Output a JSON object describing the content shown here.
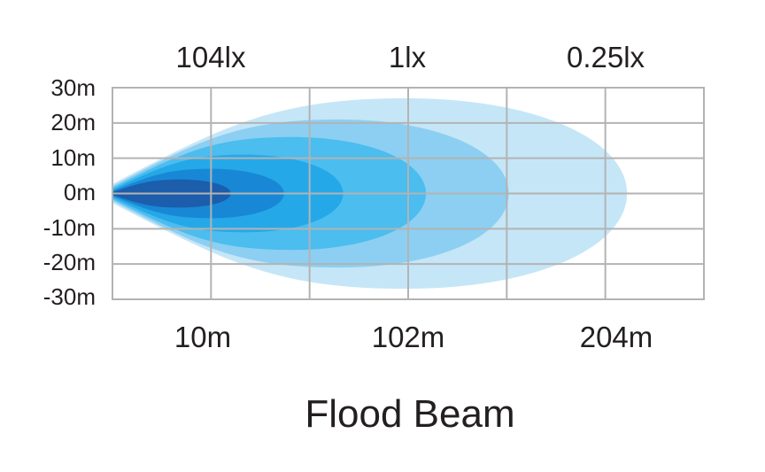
{
  "chart_data": {
    "type": "area",
    "title": "Flood Beam",
    "x_tick_labels": [
      "10m",
      "102m",
      "204m"
    ],
    "top_tick_labels": [
      "104lx",
      "1lx",
      "0.25lx"
    ],
    "y_tick_labels": [
      "30m",
      "20m",
      "10m",
      "0m",
      "-10m",
      "-20m",
      "-30m"
    ],
    "ylim": [
      -30,
      30
    ],
    "grid": true,
    "grid_color": "#b3b3b3",
    "beam_zones": [
      {
        "level": 1,
        "color": "#c5e6f7",
        "reach_fraction": 0.87,
        "half_width_m": 27
      },
      {
        "level": 2,
        "color": "#8ccff2",
        "reach_fraction": 0.67,
        "half_width_m": 21
      },
      {
        "level": 3,
        "color": "#4bbdef",
        "reach_fraction": 0.53,
        "half_width_m": 16
      },
      {
        "level": 4,
        "color": "#25a8e8",
        "reach_fraction": 0.39,
        "half_width_m": 11
      },
      {
        "level": 5,
        "color": "#1888d6",
        "reach_fraction": 0.29,
        "half_width_m": 7
      },
      {
        "level": 6,
        "color": "#1c5eac",
        "reach_fraction": 0.2,
        "half_width_m": 4
      }
    ]
  }
}
